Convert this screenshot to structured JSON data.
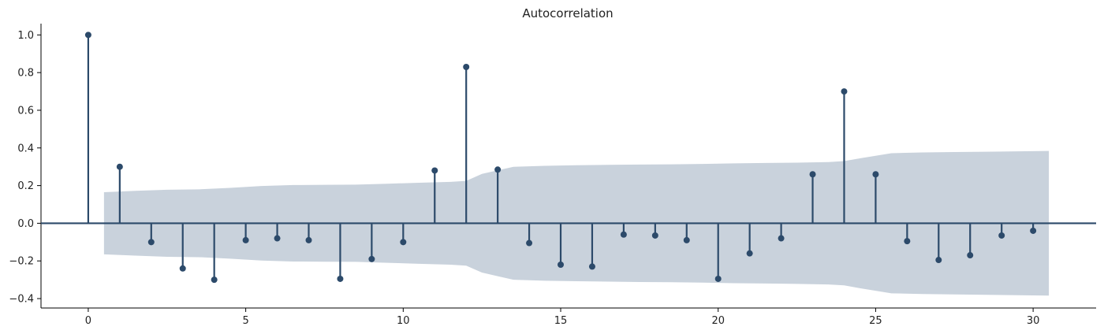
{
  "chart_data": {
    "type": "stem",
    "title": "Autocorrelation",
    "xlabel": "",
    "ylabel": "",
    "xlim": [
      -1.5,
      32
    ],
    "ylim": [
      -0.45,
      1.06
    ],
    "x_ticks": [
      0,
      5,
      10,
      15,
      20,
      25,
      30
    ],
    "y_ticks": [
      -0.4,
      -0.2,
      0.0,
      0.2,
      0.4,
      0.6,
      0.8,
      1.0
    ],
    "x_tick_labels": [
      "0",
      "5",
      "10",
      "15",
      "20",
      "25",
      "30"
    ],
    "y_tick_labels": [
      "−0.4",
      "−0.2",
      "0.0",
      "0.2",
      "0.4",
      "0.6",
      "0.8",
      "1.0"
    ],
    "lags": [
      0,
      1,
      2,
      3,
      4,
      5,
      6,
      7,
      8,
      9,
      10,
      11,
      12,
      13,
      14,
      15,
      16,
      17,
      18,
      19,
      20,
      21,
      22,
      23,
      24,
      25,
      26,
      27,
      28,
      29,
      30
    ],
    "values": [
      1.0,
      0.3,
      -0.1,
      -0.24,
      -0.3,
      -0.09,
      -0.08,
      -0.09,
      -0.295,
      -0.19,
      -0.1,
      0.28,
      0.83,
      0.285,
      -0.105,
      -0.22,
      -0.23,
      -0.06,
      -0.065,
      -0.09,
      -0.295,
      -0.16,
      -0.08,
      0.26,
      0.7,
      0.26,
      -0.095,
      -0.195,
      -0.17,
      -0.065,
      -0.04
    ],
    "confidence_band": {
      "x": [
        0.5,
        1.5,
        2.5,
        3.5,
        4.5,
        5.5,
        6.5,
        7.5,
        8.5,
        9.5,
        10.5,
        11.5,
        12.0,
        12.5,
        13.5,
        14.5,
        15.5,
        16.5,
        17.5,
        18.5,
        19.5,
        20.5,
        21.5,
        22.5,
        23.5,
        24.0,
        24.5,
        25.5,
        26.5,
        27.5,
        28.5,
        29.5,
        30.5
      ],
      "upper": [
        0.165,
        0.172,
        0.178,
        0.18,
        0.188,
        0.198,
        0.203,
        0.204,
        0.205,
        0.21,
        0.215,
        0.22,
        0.225,
        0.262,
        0.3,
        0.305,
        0.308,
        0.31,
        0.312,
        0.313,
        0.315,
        0.318,
        0.32,
        0.322,
        0.325,
        0.33,
        0.345,
        0.372,
        0.376,
        0.378,
        0.38,
        0.382,
        0.384
      ]
    },
    "grid": false,
    "colors": {
      "stem": "#2c4a6a",
      "band": "#c9d2dc",
      "axis": "#000000",
      "zero_line": "#2c4a6a"
    }
  }
}
